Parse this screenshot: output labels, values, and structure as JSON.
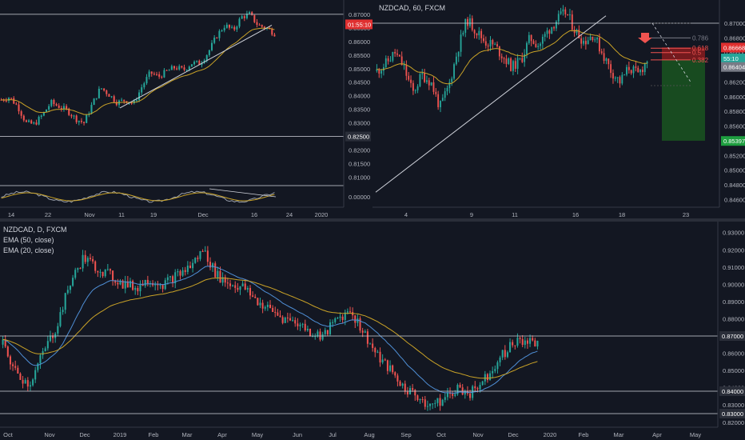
{
  "chart_data": [
    {
      "type": "candlestick",
      "panel": "top-left",
      "symbol": "NZDCAD",
      "ylim": [
        0.8075,
        0.8735
      ],
      "yticks": [
        "0.87000",
        "0.86500",
        "0.86000",
        "0.85500",
        "0.85000",
        "0.84500",
        "0.84000",
        "0.83500",
        "0.83000",
        "0.82500",
        "0.82000",
        "0.81500",
        "0.81000"
      ],
      "x_labels": [
        "14",
        "22",
        "Nov",
        "11",
        "19",
        "Dec",
        "16",
        "24",
        "2020"
      ],
      "price_badge": "01:55:10",
      "level_label": "0.82500",
      "horizontal_levels": [
        0.87,
        0.825
      ],
      "close_path": [
        0.8385,
        0.8395,
        0.836,
        0.83,
        0.8295,
        0.833,
        0.8375,
        0.836,
        0.8345,
        0.8315,
        0.83,
        0.837,
        0.843,
        0.8405,
        0.8375,
        0.8385,
        0.837,
        0.8435,
        0.8485,
        0.847,
        0.849,
        0.8505,
        0.8495,
        0.852,
        0.852,
        0.856,
        0.862,
        0.866,
        0.864,
        0.869,
        0.87,
        0.866,
        0.865,
        0.863
      ],
      "oscillator_value": "0.00000"
    },
    {
      "type": "candlestick",
      "panel": "top-right",
      "title": "NZDCAD, 60, FXCM",
      "ylim": [
        0.8455,
        0.8725
      ],
      "yticks": [
        "0.87000",
        "0.86800",
        "0.86600",
        "0.86400",
        "0.86200",
        "0.86000",
        "0.85800",
        "0.85600",
        "0.85400",
        "0.85200",
        "0.85000",
        "0.84800",
        "0.84600"
      ],
      "x_labels": [
        "4",
        "9",
        "11",
        "16",
        "18",
        "23"
      ],
      "price_badges": [
        {
          "text": "0.86668",
          "color": "#e03030"
        },
        {
          "text": "55:10",
          "color": "#26a69a"
        },
        {
          "text": "0.86404",
          "color": "#787b86"
        },
        {
          "text": "0.85397",
          "color": "#1e9e40"
        }
      ],
      "fib_levels": [
        {
          "label": "0.786",
          "value": 0.868
        },
        {
          "label": "0.618",
          "value": 0.8666
        },
        {
          "label": "0.5",
          "value": 0.866
        },
        {
          "label": "0.382",
          "value": 0.865
        }
      ],
      "horizontal_levels": [
        0.87
      ],
      "close_path": [
        0.8635,
        0.8645,
        0.866,
        0.864,
        0.8605,
        0.863,
        0.862,
        0.8585,
        0.8615,
        0.8665,
        0.8705,
        0.869,
        0.8675,
        0.867,
        0.8655,
        0.864,
        0.865,
        0.868,
        0.867,
        0.869,
        0.8705,
        0.8715,
        0.869,
        0.8675,
        0.8685,
        0.866,
        0.8635,
        0.862,
        0.864,
        0.863,
        0.865
      ]
    },
    {
      "type": "candlestick",
      "panel": "bottom",
      "title": "NZDCAD, D, FXCM",
      "legend": [
        "EMA (50, close)",
        "EMA (20, close)"
      ],
      "ylim": [
        0.8185,
        0.9345
      ],
      "yticks": [
        "0.93000",
        "0.92000",
        "0.91000",
        "0.90000",
        "0.89000",
        "0.88000",
        "0.87000",
        "0.86000",
        "0.85000",
        "0.84000",
        "0.83800",
        "0.83000",
        "0.82500",
        "0.82000"
      ],
      "x_labels": [
        "Oct",
        "Nov",
        "Dec",
        "2019",
        "Feb",
        "Mar",
        "Apr",
        "May",
        "Jun",
        "Jul",
        "Aug",
        "Sep",
        "Oct",
        "Nov",
        "Dec",
        "2020",
        "Feb",
        "Mar",
        "Apr",
        "May"
      ],
      "horizontal_levels": [
        0.87,
        0.838,
        0.825
      ],
      "close_path": [
        0.865,
        0.848,
        0.842,
        0.86,
        0.875,
        0.9,
        0.915,
        0.91,
        0.905,
        0.9,
        0.898,
        0.903,
        0.9,
        0.905,
        0.91,
        0.92,
        0.905,
        0.9,
        0.898,
        0.89,
        0.885,
        0.88,
        0.878,
        0.872,
        0.87,
        0.88,
        0.885,
        0.872,
        0.858,
        0.85,
        0.84,
        0.835,
        0.83,
        0.833,
        0.84,
        0.837,
        0.845,
        0.855,
        0.865,
        0.868,
        0.865
      ]
    }
  ]
}
